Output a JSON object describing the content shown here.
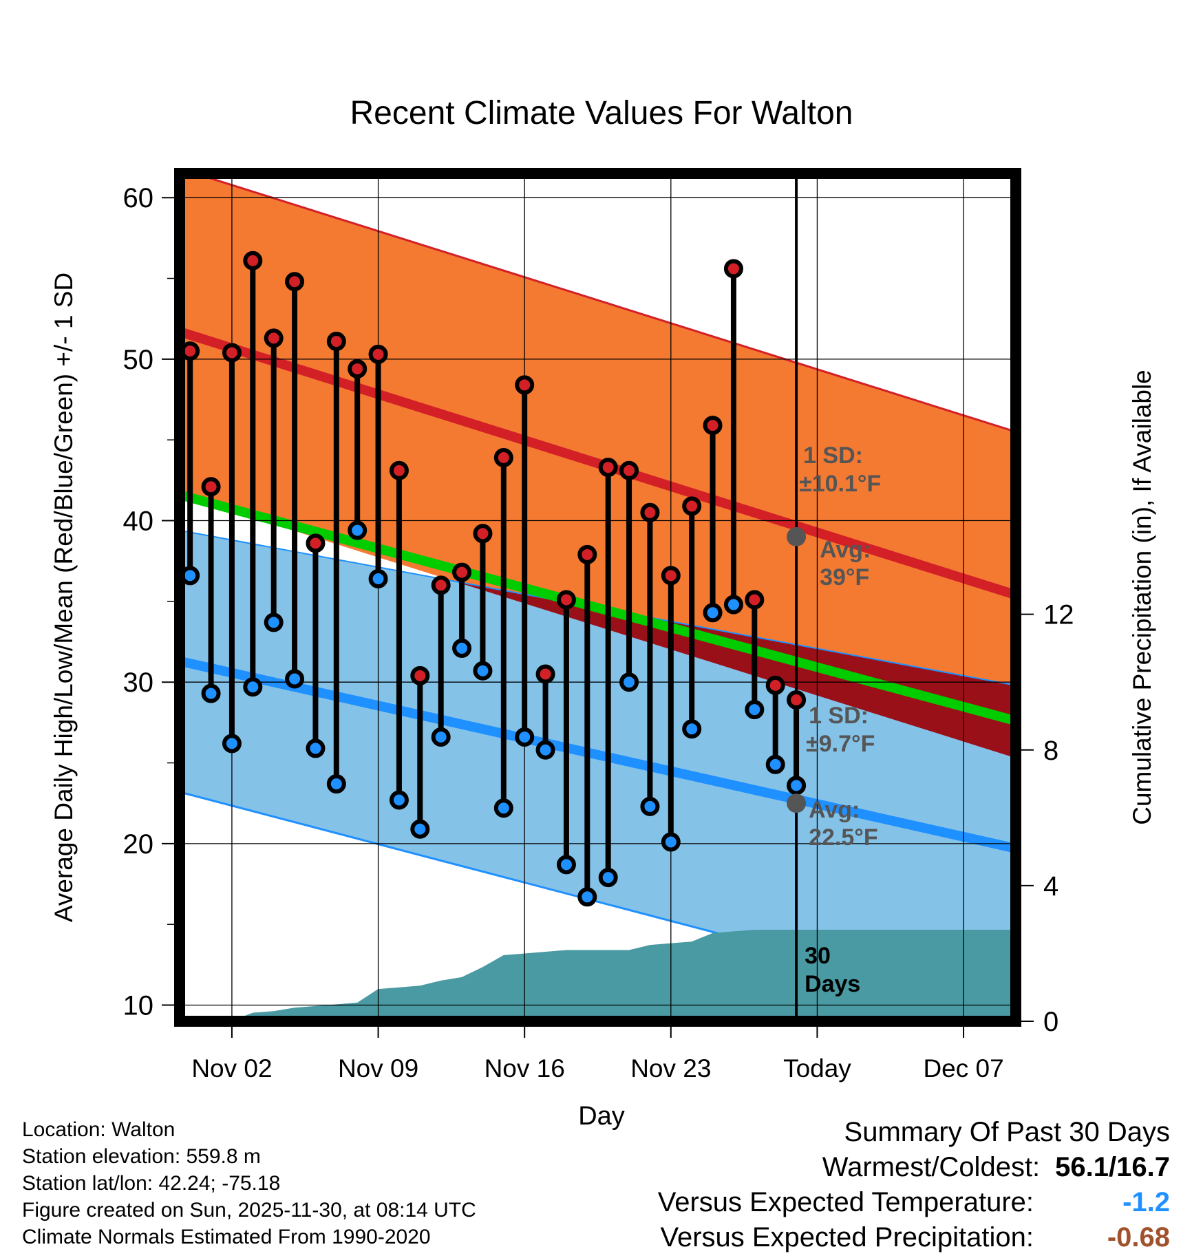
{
  "chart_data": {
    "type": "line",
    "title": "Recent Climate Values For Walton",
    "xlabel": "Day",
    "ylabel": "Average Daily High/Low/Mean (Red/Blue/Green) +/- 1 SD",
    "y2label": "Cumulative Precipitation (in), If Available",
    "ylim": [
      9,
      61.5
    ],
    "y2lim": [
      0,
      25
    ],
    "xlim": [
      -0.5,
      39.5
    ],
    "today_index": 29,
    "x_ticks": [
      {
        "day": 2,
        "label": "Nov 02"
      },
      {
        "day": 9,
        "label": "Nov 09"
      },
      {
        "day": 16,
        "label": "Nov 16"
      },
      {
        "day": 23,
        "label": "Nov 23"
      },
      {
        "day": 30,
        "label": "Today"
      },
      {
        "day": 37,
        "label": "Dec 07"
      }
    ],
    "y_ticks": [
      10,
      20,
      30,
      40,
      50,
      60
    ],
    "y2_ticks": [
      0,
      4,
      8,
      12
    ],
    "normals": {
      "high_avg_start": 51.7,
      "high_avg_end": 35.4,
      "high_sd_start": 10.1,
      "high_sd_end": 10.1,
      "low_avg_start": 31.3,
      "low_avg_end": 19.7,
      "low_sd_start": 8.1,
      "low_sd_end": 10.1,
      "mean_avg_start": 41.6,
      "mean_avg_end": 27.6
    },
    "series": [
      {
        "name": "Daily High",
        "values": [
          50.5,
          42.1,
          50.4,
          56.1,
          51.3,
          54.8,
          38.6,
          51.1,
          49.4,
          50.3,
          43.1,
          30.4,
          36.0,
          36.8,
          39.2,
          43.9,
          48.4,
          30.5,
          35.1,
          37.9,
          43.3,
          43.1,
          40.5,
          36.6,
          40.9,
          45.9,
          55.6,
          35.1,
          29.8,
          28.9
        ]
      },
      {
        "name": "Daily Low",
        "values": [
          36.6,
          29.3,
          26.2,
          29.7,
          33.7,
          30.2,
          25.9,
          23.7,
          39.4,
          36.4,
          22.7,
          20.9,
          26.6,
          32.1,
          30.7,
          22.2,
          26.6,
          25.8,
          18.7,
          16.7,
          17.9,
          30.0,
          22.3,
          20.1,
          27.1,
          34.3,
          34.8,
          28.3,
          24.9,
          23.6
        ]
      },
      {
        "name": "Cumulative Precipitation",
        "values": [
          0,
          0,
          0,
          0.02,
          0.25,
          0.3,
          0.4,
          0.45,
          0.5,
          0.55,
          0.95,
          1.0,
          1.05,
          1.2,
          1.3,
          1.6,
          1.95,
          2.0,
          2.05,
          2.1,
          2.1,
          2.1,
          2.1,
          2.25,
          2.3,
          2.35,
          2.6,
          2.65,
          2.7,
          2.7,
          2.7,
          2.7,
          2.7,
          2.7,
          2.7,
          2.7,
          2.7,
          2.7,
          2.7,
          2.7,
          2.7
        ]
      }
    ],
    "annotations": {
      "high_sd_label_1": "1 SD:",
      "high_sd_label_2": "±10.1°F",
      "high_avg_label_1": "Avg:",
      "high_avg_label_2": "39°F",
      "high_avg_value": 39,
      "low_sd_label_1": "1 SD:",
      "low_sd_label_2": "±9.7°F",
      "low_avg_label_1": "Avg:",
      "low_avg_label_2": "22.5°F",
      "low_avg_value": 22.5,
      "days_label_1": "30",
      "days_label_2": "Days"
    },
    "colors": {
      "high_band": "#f47a32",
      "high_avg": "#d32027",
      "low_band": "#85c2e8",
      "low_avg": "#1e90ff",
      "mean_line": "#00cc00",
      "overlap": "#9a1018",
      "precip": "#4a9aa3",
      "high_dot": "#d32027",
      "low_dot": "#1e90ff"
    }
  },
  "info": {
    "location": "Location: Walton",
    "elevation": "Station elevation: 559.8 m",
    "latlon": "Station lat/lon: 42.24; -75.18",
    "created": "Figure created on Sun, 2025-11-30, at 08:14 UTC",
    "normals": "Climate Normals Estimated From 1990-2020"
  },
  "summary": {
    "title": "Summary Of Past 30 Days",
    "warm_label": "Warmest/Coldest:",
    "warm_value": "56.1/16.7",
    "temp_label": "Versus Expected Temperature:",
    "temp_value": "-1.2",
    "temp_color": "#1e90ff",
    "precip_label": "Versus Expected Precipitation:",
    "precip_value": "-0.68",
    "precip_color": "#a0522d"
  }
}
